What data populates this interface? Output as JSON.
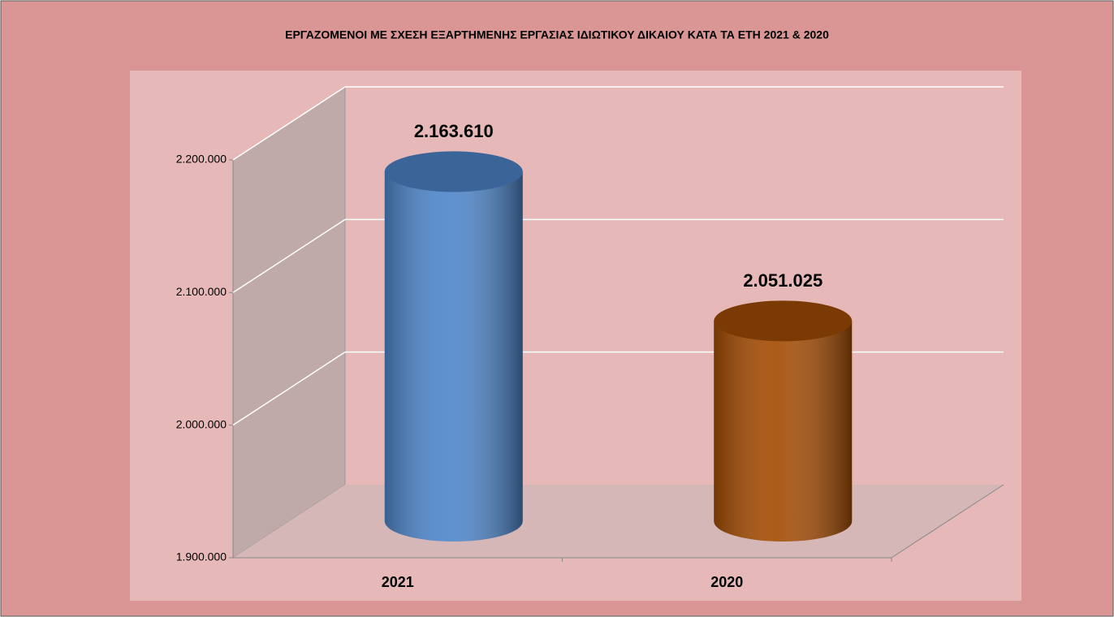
{
  "chart_data": {
    "type": "bar",
    "title": "ΕΡΓΑΖΟΜΕΝΟΙ ΜΕ ΣΧΕΣΗ ΕΞΑΡΤΗΜΕΝΗΣ ΕΡΓΑΣΙΑΣ ΙΔΙΩΤΙΚΟΥ ΔΙΚΑΙΟΥ ΚΑΤΑ ΤΑ ΕΤΗ  2021 & 2020",
    "categories": [
      "2021",
      "2020"
    ],
    "values": [
      2163610,
      2051025
    ],
    "value_labels": [
      "2.163.610",
      "2.051.025"
    ],
    "colors": [
      "#4f87cb",
      "#a54d05"
    ],
    "ylim": [
      1900000,
      2200000
    ],
    "yticks": [
      {
        "value": 1900000,
        "label": "1.900.000"
      },
      {
        "value": 2000000,
        "label": "2.000.000"
      },
      {
        "value": 2100000,
        "label": "2.100.000"
      },
      {
        "value": 2200000,
        "label": "2.200.000"
      }
    ],
    "grid": true
  }
}
